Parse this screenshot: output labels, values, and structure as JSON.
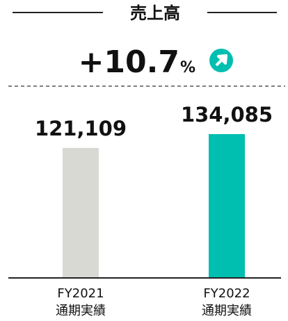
{
  "chart_data": {
    "type": "bar",
    "title": "売上高",
    "change": "+10.7",
    "change_unit": "%",
    "categories": [
      [
        "FY2021",
        "通期実績"
      ],
      [
        "FY2022",
        "通期実績"
      ]
    ],
    "values": [
      121109,
      134085
    ],
    "value_labels": [
      "121,109",
      "134,085"
    ],
    "colors": [
      "#d9d9d4",
      "#00bfb0"
    ],
    "grid": false
  }
}
